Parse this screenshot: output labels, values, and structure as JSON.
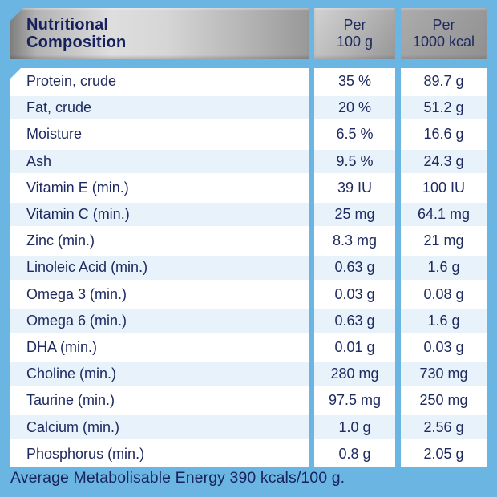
{
  "header": {
    "title": "Nutritional Composition",
    "col_per_100g": {
      "line1": "Per",
      "line2": "100 g"
    },
    "col_per_1000kcal": {
      "line1": "Per",
      "line2": "1000 kcal"
    }
  },
  "table": {
    "columns": [
      "Nutritional Composition",
      "Per 100 g",
      "Per 1000 kcal"
    ],
    "rows": [
      {
        "label": "Protein, crude",
        "per_100g": "35 %",
        "per_1000kcal": "89.7 g"
      },
      {
        "label": "Fat, crude",
        "per_100g": "20 %",
        "per_1000kcal": "51.2 g"
      },
      {
        "label": "Moisture",
        "per_100g": "6.5 %",
        "per_1000kcal": "16.6 g"
      },
      {
        "label": "Ash",
        "per_100g": "9.5 %",
        "per_1000kcal": "24.3 g"
      },
      {
        "label": "Vitamin E (min.)",
        "per_100g": "39 IU",
        "per_1000kcal": "100 IU"
      },
      {
        "label": "Vitamin C (min.)",
        "per_100g": "25 mg",
        "per_1000kcal": "64.1 mg"
      },
      {
        "label": "Zinc (min.)",
        "per_100g": "8.3 mg",
        "per_1000kcal": "21 mg"
      },
      {
        "label": "Linoleic Acid (min.)",
        "per_100g": "0.63 g",
        "per_1000kcal": "1.6 g"
      },
      {
        "label": "Omega 3 (min.)",
        "per_100g": "0.03 g",
        "per_1000kcal": "0.08 g"
      },
      {
        "label": "Omega 6 (min.)",
        "per_100g": "0.63 g",
        "per_1000kcal": "1.6 g"
      },
      {
        "label": "DHA (min.)",
        "per_100g": "0.01 g",
        "per_1000kcal": "0.03 g"
      },
      {
        "label": "Choline (min.)",
        "per_100g": "280 mg",
        "per_1000kcal": "730 mg"
      },
      {
        "label": "Taurine (min.)",
        "per_100g": "97.5 mg",
        "per_1000kcal": "250 mg"
      },
      {
        "label": "Calcium (min.)",
        "per_100g": "1.0 g",
        "per_1000kcal": "2.56 g"
      },
      {
        "label": "Phosphorus (min.)",
        "per_100g": "0.8 g",
        "per_1000kcal": "2.05 g"
      }
    ]
  },
  "footer": {
    "text": "Average Metabolisable Energy 390 kcals/100 g."
  },
  "colors": {
    "frame_blue": "#6BB5E2",
    "row_alt_blue": "#E7F2FA",
    "text_navy": "#1E2A60",
    "header_silver_light": "#DEDEDE",
    "header_silver_dark": "#909090"
  }
}
